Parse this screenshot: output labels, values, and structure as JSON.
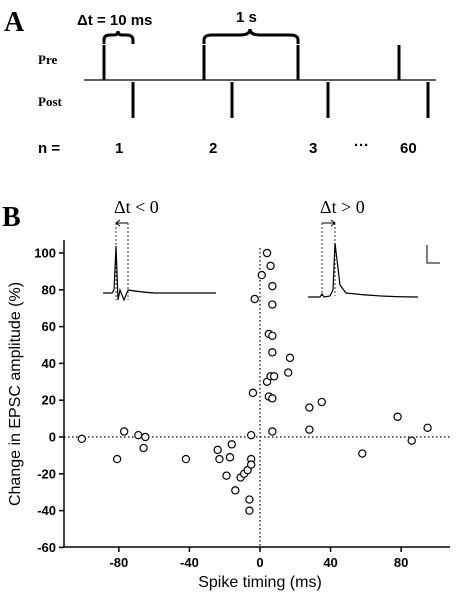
{
  "panelA": {
    "letter": "A",
    "delta_label": "Δt = 10 ms",
    "period_label": "1 s",
    "pre_label": "Pre",
    "post_label": "Post",
    "n_prefix": "n =",
    "counts": [
      "1",
      "2",
      "3",
      "···",
      "60"
    ]
  },
  "panelB": {
    "letter": "B",
    "inset_left_label": "Δt < 0",
    "inset_right_label": "Δt > 0"
  },
  "chart_data": {
    "type": "scatter",
    "title": "",
    "xlabel": "Spike timing (ms)",
    "ylabel": "Change in EPSC amplitude (%)",
    "xlim": [
      -105,
      105
    ],
    "ylim": [
      -60,
      110
    ],
    "xticks": [
      -80,
      -40,
      0,
      40,
      80
    ],
    "yticks": [
      -60,
      -40,
      -20,
      0,
      20,
      40,
      60,
      80,
      100
    ],
    "xtick_labels": [
      "-80",
      "-40",
      "0",
      "40",
      "80"
    ],
    "ytick_labels": [
      "-60",
      "-40",
      "-20",
      "0",
      "20",
      "40",
      "60",
      "80",
      "100"
    ],
    "zero_lines": "dotted",
    "marker": "open circle",
    "points": [
      {
        "x": -101,
        "y": -1
      },
      {
        "x": -81,
        "y": -12
      },
      {
        "x": -77,
        "y": 3
      },
      {
        "x": -69,
        "y": 1
      },
      {
        "x": -66,
        "y": -6
      },
      {
        "x": -65,
        "y": 0
      },
      {
        "x": -42,
        "y": -12
      },
      {
        "x": -24,
        "y": -7
      },
      {
        "x": -23,
        "y": -12
      },
      {
        "x": -19,
        "y": -21
      },
      {
        "x": -17,
        "y": -11
      },
      {
        "x": -16,
        "y": -4
      },
      {
        "x": -14,
        "y": -29
      },
      {
        "x": -11,
        "y": -22
      },
      {
        "x": -9,
        "y": -20
      },
      {
        "x": -7,
        "y": -18
      },
      {
        "x": -6,
        "y": -34
      },
      {
        "x": -6,
        "y": -40
      },
      {
        "x": -5,
        "y": -12
      },
      {
        "x": -5,
        "y": 1
      },
      {
        "x": -5,
        "y": -15
      },
      {
        "x": -4,
        "y": 24
      },
      {
        "x": -3,
        "y": 75
      },
      {
        "x": 1,
        "y": 88
      },
      {
        "x": 4,
        "y": 30
      },
      {
        "x": 4,
        "y": 100
      },
      {
        "x": 5,
        "y": 56
      },
      {
        "x": 5,
        "y": 22
      },
      {
        "x": 6,
        "y": 93
      },
      {
        "x": 6,
        "y": 33
      },
      {
        "x": 7,
        "y": 55
      },
      {
        "x": 7,
        "y": 82
      },
      {
        "x": 7,
        "y": 46
      },
      {
        "x": 7,
        "y": 21
      },
      {
        "x": 7,
        "y": 72
      },
      {
        "x": 7,
        "y": 3
      },
      {
        "x": 8,
        "y": 33
      },
      {
        "x": 16,
        "y": 35
      },
      {
        "x": 17,
        "y": 43
      },
      {
        "x": 28,
        "y": 4
      },
      {
        "x": 28,
        "y": 16
      },
      {
        "x": 35,
        "y": 19
      },
      {
        "x": 58,
        "y": -9
      },
      {
        "x": 78,
        "y": 11
      },
      {
        "x": 86,
        "y": -2
      },
      {
        "x": 95,
        "y": 5
      }
    ]
  }
}
